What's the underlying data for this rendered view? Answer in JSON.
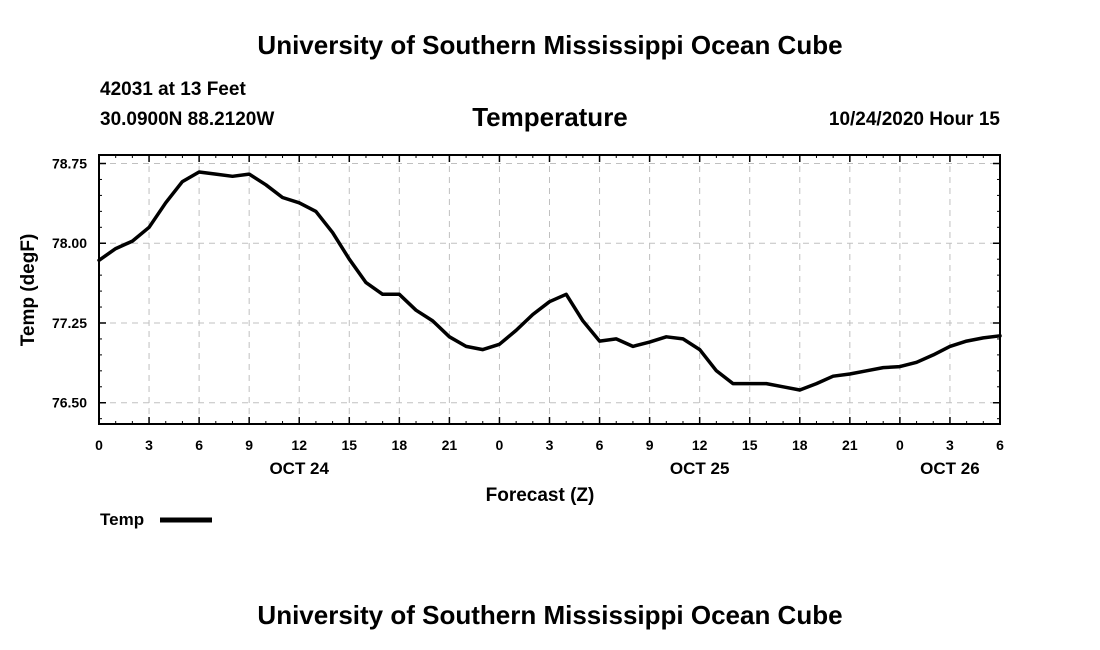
{
  "header": {
    "title": "University of Southern Mississippi Ocean Cube",
    "footer_title": "University of Southern Mississippi Ocean Cube",
    "station": "42031 at 13 Feet",
    "location": "30.0900N 88.2120W",
    "variable": "Temperature",
    "run_time": "10/24/2020 Hour 15"
  },
  "colors": {
    "line": "#000000",
    "grid": "#c0c0c0",
    "background": "#ffffff"
  },
  "chart_data": {
    "type": "line",
    "title": "Temperature",
    "xlabel": "Forecast (Z)",
    "ylabel": "Temp (degF)",
    "xlim": [
      0,
      54
    ],
    "ylim": [
      76.3,
      78.83
    ],
    "grid": true,
    "legend_position": "bottom-left",
    "yticks": [
      76.5,
      77.25,
      78.0,
      78.75
    ],
    "ytick_labels": [
      "76.50",
      "77.25",
      "78.00",
      "78.75"
    ],
    "xticks": [
      0,
      3,
      6,
      9,
      12,
      15,
      18,
      21,
      24,
      27,
      30,
      33,
      36,
      39,
      42,
      45,
      48,
      51,
      54
    ],
    "xtick_labels": [
      "0",
      "3",
      "6",
      "9",
      "12",
      "15",
      "18",
      "21",
      "0",
      "3",
      "6",
      "9",
      "12",
      "15",
      "18",
      "21",
      "0",
      "3",
      "6"
    ],
    "date_labels": [
      {
        "label": "OCT 24",
        "x": 12
      },
      {
        "label": "OCT 25",
        "x": 36
      },
      {
        "label": "OCT 26",
        "x": 51
      }
    ],
    "series": [
      {
        "name": "Temp",
        "x": [
          0,
          1,
          2,
          3,
          4,
          5,
          6,
          7,
          8,
          9,
          10,
          11,
          12,
          13,
          14,
          15,
          16,
          17,
          18,
          19,
          20,
          21,
          22,
          23,
          24,
          25,
          26,
          27,
          28,
          29,
          30,
          31,
          32,
          33,
          34,
          35,
          36,
          37,
          38,
          39,
          40,
          41,
          42,
          43,
          44,
          45,
          46,
          47,
          48,
          49,
          50,
          51,
          52,
          53,
          54
        ],
        "values": [
          77.84,
          77.95,
          78.02,
          78.15,
          78.38,
          78.58,
          78.67,
          78.65,
          78.63,
          78.65,
          78.55,
          78.43,
          78.38,
          78.3,
          78.1,
          77.85,
          77.63,
          77.52,
          77.52,
          77.37,
          77.27,
          77.12,
          77.03,
          77.0,
          77.05,
          77.18,
          77.33,
          77.45,
          77.52,
          77.27,
          77.08,
          77.1,
          77.03,
          77.07,
          77.12,
          77.1,
          77.0,
          76.8,
          76.68,
          76.68,
          76.68,
          76.65,
          76.62,
          76.68,
          76.75,
          76.77,
          76.8,
          76.83,
          76.84,
          76.88,
          76.95,
          77.03,
          77.08,
          77.11,
          77.13
        ]
      }
    ]
  }
}
